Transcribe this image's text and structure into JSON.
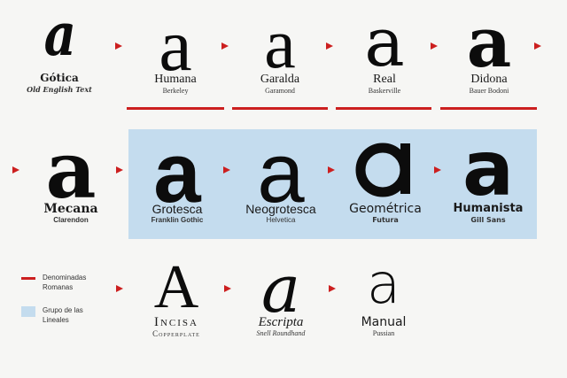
{
  "glyph": "a",
  "capital_glyph": "A",
  "row1": [
    {
      "name": "Gótica",
      "sub": "Old English Text"
    },
    {
      "name": "Humana",
      "sub": "Berkeley"
    },
    {
      "name": "Garalda",
      "sub": "Garamond"
    },
    {
      "name": "Real",
      "sub": "Baskerville"
    },
    {
      "name": "Didona",
      "sub": "Bauer Bodoni"
    }
  ],
  "row2": [
    {
      "name": "Mecana",
      "sub": "Clarendon"
    },
    {
      "name": "Grotesca",
      "sub": "Franklin Gothic"
    },
    {
      "name": "Neogrotesca",
      "sub": "Helvetica"
    },
    {
      "name": "Geométrica",
      "sub": "Futura"
    },
    {
      "name": "Humanista",
      "sub": "Gill Sans"
    }
  ],
  "row3": [
    {
      "name": "Incisa",
      "sub": "Copperplate"
    },
    {
      "name": "Escripta",
      "sub": "Snell Roundhand"
    },
    {
      "name": "Manual",
      "sub": "Pussian"
    }
  ],
  "legend": {
    "romanas": "Denominadas Romanas",
    "lineales": "Grupo de las Lineales"
  },
  "colors": {
    "romanas": "#cc1f1f",
    "lineales": "#c4dcee"
  }
}
